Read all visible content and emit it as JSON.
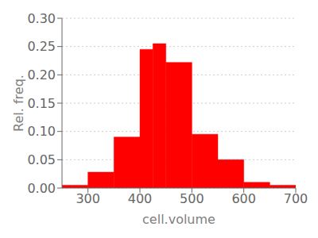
{
  "chart_data": {
    "type": "histogram",
    "xlabel": "cell.volume",
    "ylabel": "Rel. freq.",
    "bins": [
      250,
      300,
      350,
      400,
      425,
      450,
      500,
      550,
      600,
      650,
      700
    ],
    "values": [
      0.005,
      0.028,
      0.09,
      0.245,
      0.255,
      0.222,
      0.095,
      0.05,
      0.01,
      0.005
    ],
    "color": "#ff0000",
    "xlim": [
      250,
      700
    ],
    "ylim": [
      0,
      0.3
    ],
    "xticks": [
      300,
      400,
      500,
      600,
      700
    ],
    "yticks": [
      {
        "value": 0,
        "label": "0.00"
      },
      {
        "value": 0.05,
        "label": "0.05"
      },
      {
        "value": 0.1,
        "label": "0.10"
      },
      {
        "value": 0.15,
        "label": "0.15"
      },
      {
        "value": 0.2,
        "label": "0.20"
      },
      {
        "value": 0.25,
        "label": "0.25"
      },
      {
        "value": 0.3,
        "label": "0.30"
      }
    ],
    "grid": true
  }
}
